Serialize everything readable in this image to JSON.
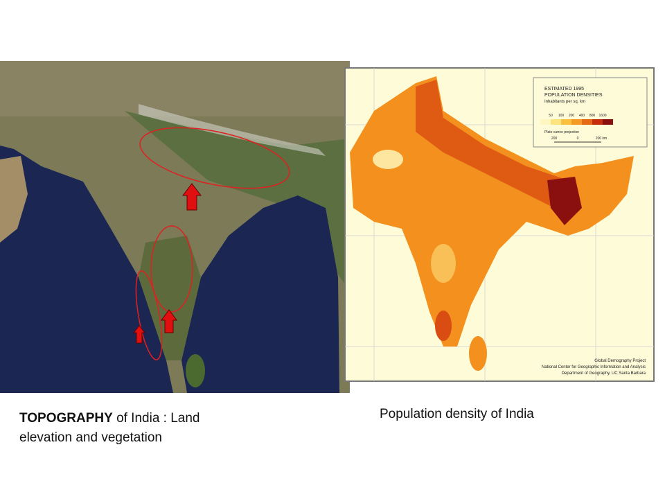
{
  "left_caption": {
    "bold": "TOPOGRAPHY",
    "text": "of India : Land elevation and vegetation"
  },
  "right_caption": "Population density of India",
  "legend": {
    "title_1": "ESTIMATED 1995",
    "title_2": "POPULATION DENSITIES",
    "subtitle": "Inhabitants per sq. km",
    "classes": [
      50,
      100,
      200,
      400,
      800,
      1600
    ],
    "projection": "Plate carree projection",
    "scale": [
      "200",
      "0",
      "200 km"
    ]
  },
  "credits": [
    "Global Demography Project",
    "National Center for Geographic Information and Analysis",
    "Department of Geography, UC Santa Barbara"
  ]
}
